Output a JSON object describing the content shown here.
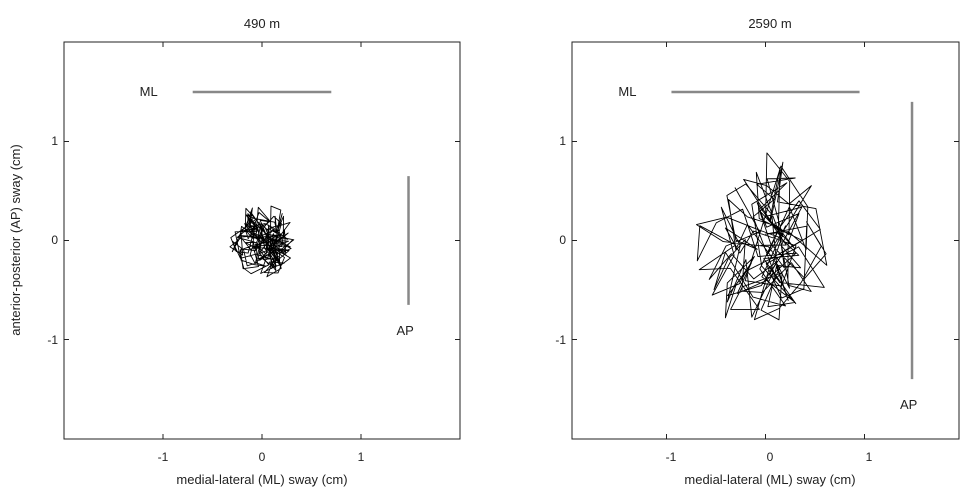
{
  "chart_data": [
    {
      "type": "line",
      "title": "490 m",
      "xlabel": "medial-lateral (ML) sway (cm)",
      "ylabel": "anterior-posterior (AP) sway (cm)",
      "xlim": [
        -2,
        2
      ],
      "ylim": [
        -2,
        2
      ],
      "xticks": [
        "-1",
        "0",
        "1"
      ],
      "yticks": [
        "1",
        "0",
        "-1"
      ],
      "grid": false,
      "ml_bar": {
        "label": "ML",
        "x": [
          -0.7,
          0.7
        ],
        "y": 1.5
      },
      "ap_bar": {
        "label": "AP",
        "x": 1.48,
        "y": [
          -0.65,
          0.65
        ]
      },
      "trace": {
        "center": [
          0.0,
          0.0
        ],
        "rx": 0.33,
        "ry": 0.38,
        "points": 220,
        "seed": 7
      }
    },
    {
      "type": "line",
      "title": "2590 m",
      "xlabel": "medial-lateral (ML) sway (cm)",
      "ylabel": "",
      "xlim": [
        -2,
        2
      ],
      "ylim": [
        -2,
        2
      ],
      "xticks": [
        "-1",
        "0",
        "1"
      ],
      "yticks": [
        "1",
        "0",
        "-1"
      ],
      "grid": false,
      "ml_bar": {
        "label": "ML",
        "x": [
          -0.95,
          0.95
        ],
        "y": 1.5
      },
      "ap_bar": {
        "label": "AP",
        "x": 1.48,
        "y": [
          -1.4,
          1.4
        ]
      },
      "trace": {
        "center": [
          -0.05,
          -0.05
        ],
        "rx": 0.72,
        "ry": 1.0,
        "points": 160,
        "seed": 19
      }
    }
  ]
}
